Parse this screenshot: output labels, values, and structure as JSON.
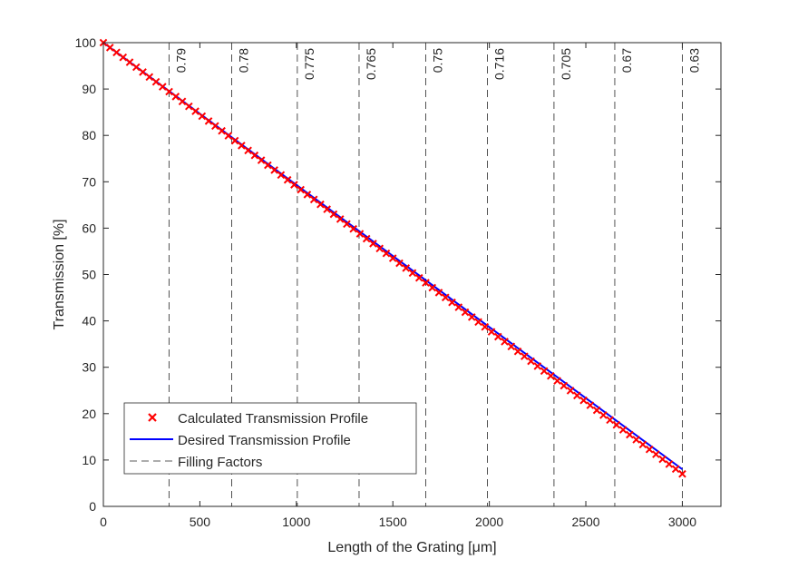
{
  "chart_data": {
    "type": "line",
    "xlabel": "Length of the Grating [μm]",
    "ylabel": "Transmission [%]",
    "xlim": [
      0,
      3200
    ],
    "ylim": [
      0,
      100
    ],
    "x_ticks": [
      "0",
      "500",
      "1000",
      "1500",
      "2000",
      "2500",
      "3000"
    ],
    "x_tick_values": [
      0,
      500,
      1000,
      1500,
      2000,
      2500,
      3000
    ],
    "y_ticks": [
      "0",
      "10",
      "20",
      "30",
      "40",
      "50",
      "60",
      "70",
      "80",
      "90",
      "100"
    ],
    "y_tick_values": [
      0,
      10,
      20,
      30,
      40,
      50,
      60,
      70,
      80,
      90,
      100
    ],
    "grid": false,
    "legend_position": "bottom-left",
    "series": [
      {
        "name": "Calculated Transmission Profile",
        "style": "markers",
        "marker": "x",
        "color": "#ff0000",
        "x_start": 0,
        "x_end": 3000,
        "y_start": 100,
        "y_end": 7,
        "point_count": 89
      },
      {
        "name": "Desired Transmission Profile",
        "style": "line",
        "color": "#0000ff",
        "x": [
          0,
          3000
        ],
        "y": [
          100,
          8
        ]
      },
      {
        "name": "Filling Factors",
        "style": "dashed-vertical",
        "color": "#262626",
        "x": [
          340,
          665,
          1005,
          1325,
          1670,
          1990,
          2335,
          2650,
          3000
        ],
        "labels": [
          "0.79",
          "0.78",
          "0.775",
          "0.765",
          "0.75",
          "0.716",
          "0.705",
          "0.67",
          "0.63"
        ]
      }
    ]
  }
}
